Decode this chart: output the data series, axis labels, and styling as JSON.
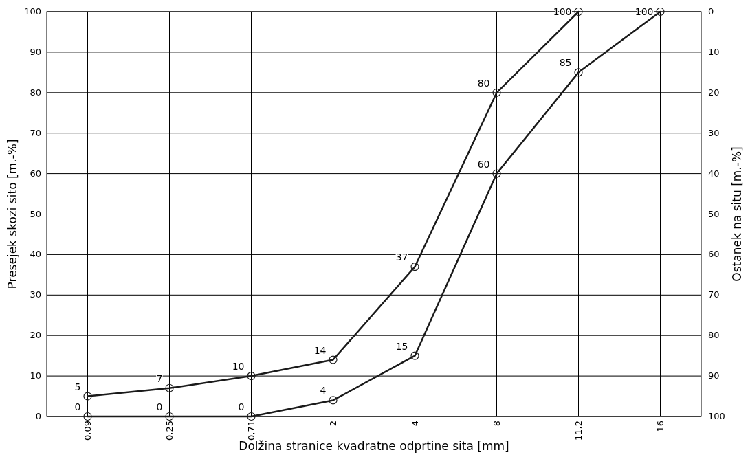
{
  "chart_data": {
    "type": "line",
    "xlabel": "Dolžina stranice kvadratne odprtine sita [mm]",
    "ylabel": "Presejek skozi sito [m.-%]",
    "y2label": "Ostanek na situ [m.-%]",
    "categories": [
      "0,09",
      "0,25",
      "0,71",
      "2",
      "4",
      "8",
      "11,2",
      "16"
    ],
    "ylim": [
      0,
      100
    ],
    "yticks": [
      0,
      10,
      20,
      30,
      40,
      50,
      60,
      70,
      80,
      90,
      100
    ],
    "y2lim": [
      100,
      0
    ],
    "y2ticks": [
      0,
      10,
      20,
      30,
      40,
      50,
      60,
      70,
      80,
      90,
      100
    ],
    "grid": true,
    "marker": "circle",
    "line_style": "solid",
    "data_labels": true,
    "series": [
      {
        "color": "#1a1a1a",
        "values": [
          5,
          7,
          10,
          14,
          37,
          80,
          100,
          null
        ]
      },
      {
        "color": "#1a1a1a",
        "values": [
          0,
          0,
          0,
          4,
          15,
          60,
          85,
          100
        ]
      }
    ]
  }
}
